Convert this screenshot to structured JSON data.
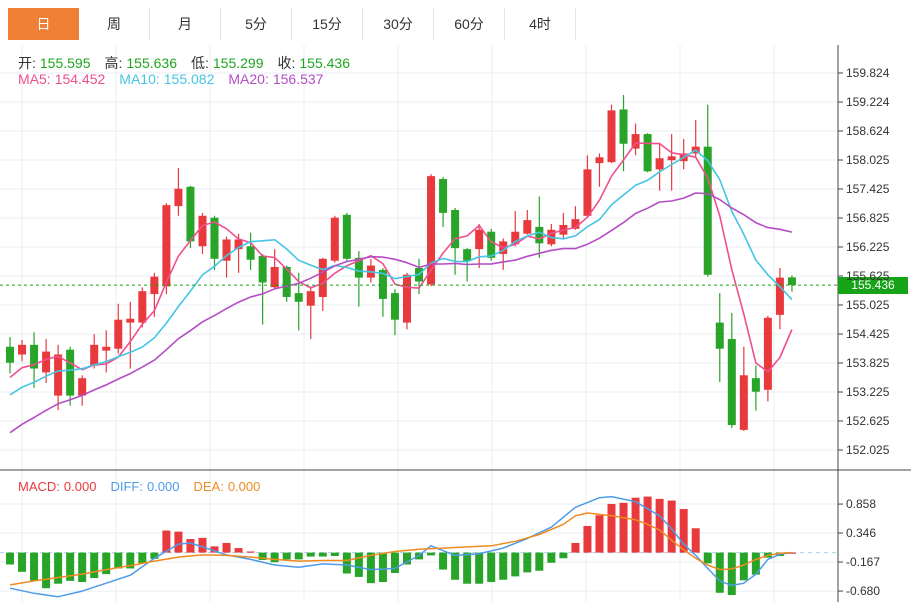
{
  "toolbar": {
    "tabs": [
      {
        "key": "day",
        "label": "日",
        "active": true
      },
      {
        "key": "week",
        "label": "周",
        "active": false
      },
      {
        "key": "month",
        "label": "月",
        "active": false
      },
      {
        "key": "5min",
        "label": "5分",
        "active": false
      },
      {
        "key": "15min",
        "label": "15分",
        "active": false
      },
      {
        "key": "30min",
        "label": "30分",
        "active": false
      },
      {
        "key": "60min",
        "label": "60分",
        "active": false
      },
      {
        "key": "4hour",
        "label": "4时",
        "active": false
      }
    ]
  },
  "info": {
    "ohlc": [
      {
        "key": "open",
        "label": "开:",
        "value": "155.595"
      },
      {
        "key": "high",
        "label": "高:",
        "value": "155.636"
      },
      {
        "key": "low",
        "label": "低:",
        "value": "155.299"
      },
      {
        "key": "close",
        "label": "收:",
        "value": "155.436"
      }
    ],
    "ma": [
      {
        "key": "ma5",
        "label": "MA5:",
        "value": "154.452",
        "color": "#ef4f8f"
      },
      {
        "key": "ma10",
        "label": "MA10:",
        "value": "155.082",
        "color": "#45c5e5"
      },
      {
        "key": "ma20",
        "label": "MA20:",
        "value": "156.537",
        "color": "#b44dc4"
      }
    ]
  },
  "price_axis": {
    "ticks": [
      "159.824",
      "159.224",
      "158.624",
      "158.025",
      "157.425",
      "156.825",
      "156.225",
      "155.625",
      "155.025",
      "154.425",
      "153.825",
      "153.225",
      "152.625",
      "152.025"
    ],
    "current": "155.436"
  },
  "macd_panel": {
    "labels": [
      {
        "key": "macd",
        "label": "MACD:",
        "value": "0.000",
        "color": "#e83b3b"
      },
      {
        "key": "diff",
        "label": "DIFF:",
        "value": "0.000",
        "color": "#4e9be8"
      },
      {
        "key": "dea",
        "label": "DEA:",
        "value": "0.000",
        "color": "#ef8b1f"
      }
    ],
    "ticks": [
      "0.858",
      "0.346",
      "-0.167",
      "-0.680"
    ]
  },
  "colors": {
    "up": "#e8393d",
    "down": "#28a428",
    "ma5": "#ef4f8f",
    "ma10": "#45c5e5",
    "ma20": "#b44dc4",
    "diff": "#4e9be8",
    "dea": "#ef8b1f",
    "value_green": "#1fa61f",
    "badge_green": "#17a317",
    "accent_orange": "#ee7f35",
    "grid": "#e9eef4",
    "vgrid": "#ececec",
    "axis_line": "#444",
    "zero_dash": "#a8d4ec"
  },
  "chart_data": {
    "type": "candlestick_with_macd",
    "timeframe": "日",
    "price_axis_range": [
      152.025,
      159.824
    ],
    "macd_axis_range": [
      -0.68,
      0.858
    ],
    "current_close": 155.436,
    "ohlc_current": {
      "open": 155.595,
      "high": 155.636,
      "low": 155.299,
      "close": 155.436
    },
    "ma_periods": [
      5,
      10,
      20
    ],
    "ma_current": {
      "ma5": 154.452,
      "ma10": 155.082,
      "ma20": 156.537
    },
    "candles_ohlc": [
      [
        154.16,
        154.36,
        153.61,
        153.83
      ],
      [
        154.0,
        154.3,
        153.86,
        154.2
      ],
      [
        154.2,
        154.46,
        153.31,
        153.71
      ],
      [
        153.63,
        154.32,
        153.41,
        154.06
      ],
      [
        153.15,
        154.2,
        152.85,
        154.0
      ],
      [
        154.1,
        154.16,
        152.94,
        153.15
      ],
      [
        153.15,
        153.57,
        152.94,
        153.51
      ],
      [
        153.77,
        154.42,
        153.71,
        154.2
      ],
      [
        154.08,
        154.5,
        153.63,
        154.16
      ],
      [
        154.12,
        155.05,
        154.02,
        154.72
      ],
      [
        154.66,
        155.09,
        153.71,
        154.74
      ],
      [
        154.66,
        155.39,
        154.56,
        155.31
      ],
      [
        155.25,
        155.69,
        154.78,
        155.61
      ],
      [
        155.41,
        157.13,
        155.25,
        157.09
      ],
      [
        157.07,
        157.86,
        156.87,
        157.43
      ],
      [
        157.47,
        157.49,
        156.2,
        156.34
      ],
      [
        156.24,
        156.93,
        156.08,
        156.87
      ],
      [
        156.83,
        156.87,
        155.75,
        155.98
      ],
      [
        155.94,
        156.44,
        155.59,
        156.38
      ],
      [
        156.18,
        156.5,
        155.69,
        156.38
      ],
      [
        156.24,
        156.52,
        155.75,
        155.96
      ],
      [
        156.04,
        156.08,
        154.62,
        155.49
      ],
      [
        155.39,
        156.18,
        155.35,
        155.81
      ],
      [
        155.81,
        155.84,
        155.09,
        155.19
      ],
      [
        155.27,
        155.69,
        154.5,
        155.09
      ],
      [
        155.01,
        155.41,
        154.32,
        155.31
      ],
      [
        155.19,
        156.0,
        154.9,
        155.98
      ],
      [
        155.94,
        156.87,
        155.9,
        156.83
      ],
      [
        156.89,
        156.93,
        155.94,
        155.98
      ],
      [
        156.0,
        156.14,
        154.99,
        155.59
      ],
      [
        155.59,
        155.98,
        155.49,
        155.84
      ],
      [
        155.75,
        155.79,
        154.78,
        155.15
      ],
      [
        155.27,
        155.35,
        154.4,
        154.72
      ],
      [
        154.66,
        155.69,
        154.52,
        155.65
      ],
      [
        155.79,
        155.98,
        155.25,
        155.51
      ],
      [
        155.45,
        157.73,
        155.41,
        157.69
      ],
      [
        157.63,
        157.67,
        156.64,
        156.93
      ],
      [
        156.99,
        157.03,
        155.65,
        156.2
      ],
      [
        156.18,
        156.2,
        155.51,
        155.94
      ],
      [
        156.18,
        156.7,
        155.79,
        156.58
      ],
      [
        156.54,
        156.6,
        155.94,
        156.0
      ],
      [
        156.08,
        156.4,
        155.75,
        156.34
      ],
      [
        156.28,
        156.97,
        156.24,
        156.54
      ],
      [
        156.5,
        156.99,
        156.48,
        156.78
      ],
      [
        156.64,
        157.27,
        156.0,
        156.3
      ],
      [
        156.28,
        156.7,
        156.24,
        156.58
      ],
      [
        156.48,
        156.93,
        156.4,
        156.68
      ],
      [
        156.6,
        157.07,
        156.58,
        156.8
      ],
      [
        156.87,
        158.12,
        156.83,
        157.83
      ],
      [
        157.96,
        158.16,
        157.47,
        158.08
      ],
      [
        157.98,
        159.17,
        157.96,
        159.05
      ],
      [
        159.07,
        159.37,
        157.79,
        158.36
      ],
      [
        158.26,
        158.78,
        158.12,
        158.56
      ],
      [
        158.56,
        158.58,
        157.77,
        157.79
      ],
      [
        157.83,
        158.38,
        157.39,
        158.06
      ],
      [
        158.02,
        158.56,
        157.39,
        158.1
      ],
      [
        158.0,
        158.46,
        157.83,
        158.16
      ],
      [
        158.16,
        158.85,
        158.08,
        158.3
      ],
      [
        158.3,
        159.17,
        155.61,
        155.65
      ],
      [
        154.66,
        155.27,
        153.43,
        154.12
      ],
      [
        154.32,
        154.86,
        152.48,
        152.54
      ],
      [
        152.44,
        154.16,
        152.42,
        153.57
      ],
      [
        153.51,
        153.77,
        152.84,
        153.23
      ],
      [
        153.27,
        154.8,
        153.03,
        154.76
      ],
      [
        154.82,
        155.79,
        154.52,
        155.59
      ],
      [
        155.595,
        155.636,
        155.299,
        155.436
      ]
    ],
    "macd_histogram": [
      -0.21,
      -0.34,
      -0.5,
      -0.63,
      -0.55,
      -0.5,
      -0.52,
      -0.45,
      -0.38,
      -0.28,
      -0.28,
      -0.19,
      -0.11,
      0.39,
      0.37,
      0.24,
      0.26,
      0.11,
      0.17,
      0.08,
      0.02,
      -0.13,
      -0.17,
      -0.12,
      -0.12,
      -0.07,
      -0.07,
      -0.06,
      -0.37,
      -0.43,
      -0.54,
      -0.52,
      -0.36,
      -0.21,
      -0.12,
      -0.05,
      -0.3,
      -0.48,
      -0.55,
      -0.55,
      -0.52,
      -0.48,
      -0.42,
      -0.35,
      -0.32,
      -0.18,
      -0.1,
      0.17,
      0.47,
      0.66,
      0.86,
      0.88,
      0.97,
      0.99,
      0.95,
      0.92,
      0.77,
      0.43,
      -0.19,
      -0.71,
      -0.75,
      -0.49,
      -0.39,
      -0.09,
      -0.06,
      0.0
    ],
    "diff_points": [
      [
        0,
        -0.63
      ],
      [
        2,
        -0.72
      ],
      [
        4,
        -0.78
      ],
      [
        6,
        -0.68
      ],
      [
        8,
        -0.54
      ],
      [
        10,
        -0.4
      ],
      [
        12,
        -0.1
      ],
      [
        14,
        0.15
      ],
      [
        15,
        0.17
      ],
      [
        16,
        0.1
      ],
      [
        18,
        -0.04
      ],
      [
        20,
        -0.12
      ],
      [
        22,
        -0.22
      ],
      [
        24,
        -0.26
      ],
      [
        26,
        -0.2
      ],
      [
        28,
        -0.22
      ],
      [
        30,
        -0.3
      ],
      [
        32,
        -0.28
      ],
      [
        34,
        -0.05
      ],
      [
        35,
        0.12
      ],
      [
        37,
        -0.05
      ],
      [
        39,
        -0.02
      ],
      [
        41,
        0.08
      ],
      [
        43,
        0.25
      ],
      [
        45,
        0.45
      ],
      [
        47,
        0.8
      ],
      [
        49,
        0.97
      ],
      [
        50,
        0.99
      ],
      [
        52,
        0.9
      ],
      [
        54,
        0.65
      ],
      [
        55,
        0.42
      ],
      [
        56,
        0.15
      ],
      [
        57,
        -0.05
      ],
      [
        58,
        -0.28
      ],
      [
        59,
        -0.5
      ],
      [
        60,
        -0.58
      ],
      [
        61,
        -0.54
      ],
      [
        62,
        -0.38
      ],
      [
        63,
        -0.12
      ],
      [
        64,
        -0.03
      ],
      [
        65,
        0.0
      ]
    ],
    "dea_points": [
      [
        0,
        -0.57
      ],
      [
        2,
        -0.5
      ],
      [
        4,
        -0.44
      ],
      [
        6,
        -0.38
      ],
      [
        8,
        -0.3
      ],
      [
        10,
        -0.23
      ],
      [
        12,
        -0.15
      ],
      [
        14,
        -0.08
      ],
      [
        16,
        -0.04
      ],
      [
        18,
        -0.05
      ],
      [
        20,
        -0.08
      ],
      [
        22,
        -0.12
      ],
      [
        24,
        -0.15
      ],
      [
        26,
        -0.14
      ],
      [
        28,
        -0.14
      ],
      [
        30,
        -0.05
      ],
      [
        32,
        0.02
      ],
      [
        34,
        0.06
      ],
      [
        36,
        0.08
      ],
      [
        38,
        0.1
      ],
      [
        40,
        0.12
      ],
      [
        42,
        0.2
      ],
      [
        44,
        0.32
      ],
      [
        46,
        0.5
      ],
      [
        47,
        0.65
      ],
      [
        48,
        0.7
      ],
      [
        50,
        0.65
      ],
      [
        52,
        0.58
      ],
      [
        53,
        0.5
      ],
      [
        54,
        0.4
      ],
      [
        55,
        0.22
      ],
      [
        56,
        0.05
      ],
      [
        57,
        -0.1
      ],
      [
        58,
        -0.22
      ],
      [
        59,
        -0.3
      ],
      [
        60,
        -0.29
      ],
      [
        61,
        -0.22
      ],
      [
        62,
        -0.12
      ],
      [
        63,
        -0.05
      ],
      [
        64,
        -0.01
      ],
      [
        65,
        0.0
      ]
    ]
  }
}
